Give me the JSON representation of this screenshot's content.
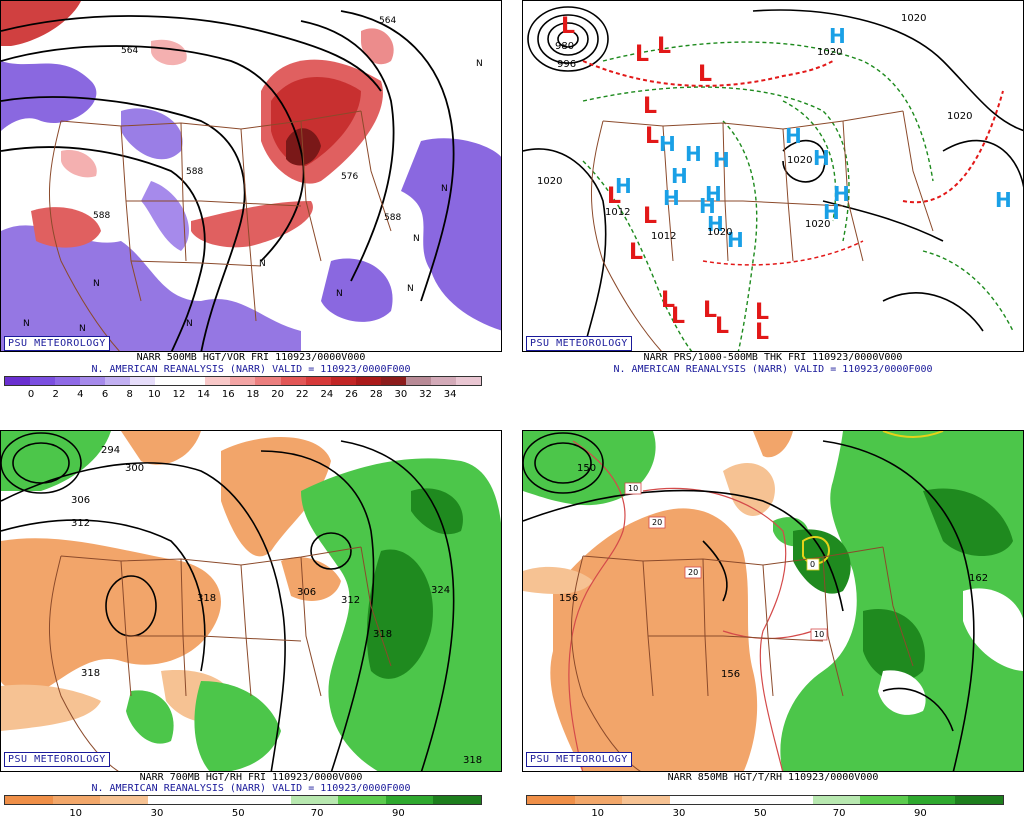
{
  "colors": {
    "vort_blue": "#7b55d6",
    "vort_red": "#d23a3a",
    "rh_brown": "#ef9a5a",
    "rh_green": "#3cc43c",
    "low_red": "#e21818",
    "high_blue": "#1aa0e6",
    "map_border": "#8b4a2b"
  },
  "panels": {
    "tl": {
      "psu": "PSU METEOROLOGY",
      "line1": "NARR 500MB HGT/VOR FRI 110923/0000V000",
      "line2": "N. AMERICAN REANALYSIS (NARR) VALID = 110923/0000F000",
      "colorbar": {
        "colors": [
          "#6a2fd0",
          "#7b4fe0",
          "#8f6ae6",
          "#a68aeb",
          "#c2b0f2",
          "#e6ddfa",
          "#ffffff",
          "#ffffff",
          "#f8c8c8",
          "#f3a5a5",
          "#eb7f7f",
          "#e25757",
          "#d63a3a",
          "#c22626",
          "#aa1a1a",
          "#8c1c1c",
          "#b88a96",
          "#d3aab8",
          "#e9c6d2"
        ],
        "labels": [
          "0",
          "2",
          "4",
          "6",
          "8",
          "10",
          "12",
          "14",
          "16",
          "18",
          "20",
          "22",
          "24",
          "26",
          "28",
          "30",
          "32",
          "34"
        ]
      },
      "contour_labels": [
        "564",
        "564",
        "588",
        "588",
        "588",
        "576"
      ],
      "symbols": [
        "N",
        "N",
        "N",
        "N",
        "N",
        "N",
        "N",
        "N",
        "N",
        "N"
      ]
    },
    "tr": {
      "psu": "PSU METEOROLOGY",
      "line1": "NARR PRS/1000-500MB THK FRI 110923/0000V000",
      "line2": "N. AMERICAN REANALYSIS (NARR) VALID = 110923/0000F000",
      "lows": [
        "L",
        "L",
        "L",
        "L",
        "L",
        "L",
        "L",
        "L",
        "L",
        "L",
        "L",
        "L",
        "L",
        "L",
        "L"
      ],
      "highs": [
        "H",
        "H",
        "H",
        "H",
        "H",
        "H",
        "H",
        "H",
        "H",
        "H",
        "H",
        "H",
        "H",
        "H",
        "H",
        "H"
      ],
      "pressure_labels": [
        "1020",
        "1020",
        "1020",
        "1020",
        "1020",
        "1012",
        "1012",
        "1020",
        "1020",
        "980",
        "996"
      ]
    },
    "bl": {
      "psu": "PSU METEOROLOGY",
      "line1": "NARR 700MB HGT/RH FRI 110923/0000V000",
      "line2": "N. AMERICAN REANALYSIS (NARR) VALID = 110923/0000F000",
      "colorbar": {
        "colors": [
          "#ef8f48",
          "#f2a76a",
          "#f6c293",
          "#ffffff",
          "#ffffff",
          "#ffffff",
          "#b8e8b0",
          "#5ccc4e",
          "#2ea82e",
          "#1d7e1d"
        ],
        "labels": [
          "10",
          "30",
          "50",
          "70",
          "90"
        ]
      },
      "contour_labels": [
        "294",
        "300",
        "306",
        "312",
        "318",
        "318",
        "306",
        "312",
        "318",
        "324",
        "318"
      ]
    },
    "br": {
      "psu": "PSU METEOROLOGY",
      "line1": "NARR 850MB HGT/T/RH 110923/0000V000",
      "colorbar": {
        "colors": [
          "#ef8f48",
          "#f2a76a",
          "#f6c293",
          "#ffffff",
          "#ffffff",
          "#ffffff",
          "#b8e8b0",
          "#5ccc4e",
          "#2ea82e",
          "#1d7e1d"
        ],
        "labels": [
          "10",
          "30",
          "50",
          "70",
          "90"
        ]
      },
      "contour_labels": [
        "156",
        "162",
        "156",
        "150"
      ],
      "temp_labels": [
        "10",
        "20",
        "20",
        "10",
        "0"
      ]
    }
  }
}
